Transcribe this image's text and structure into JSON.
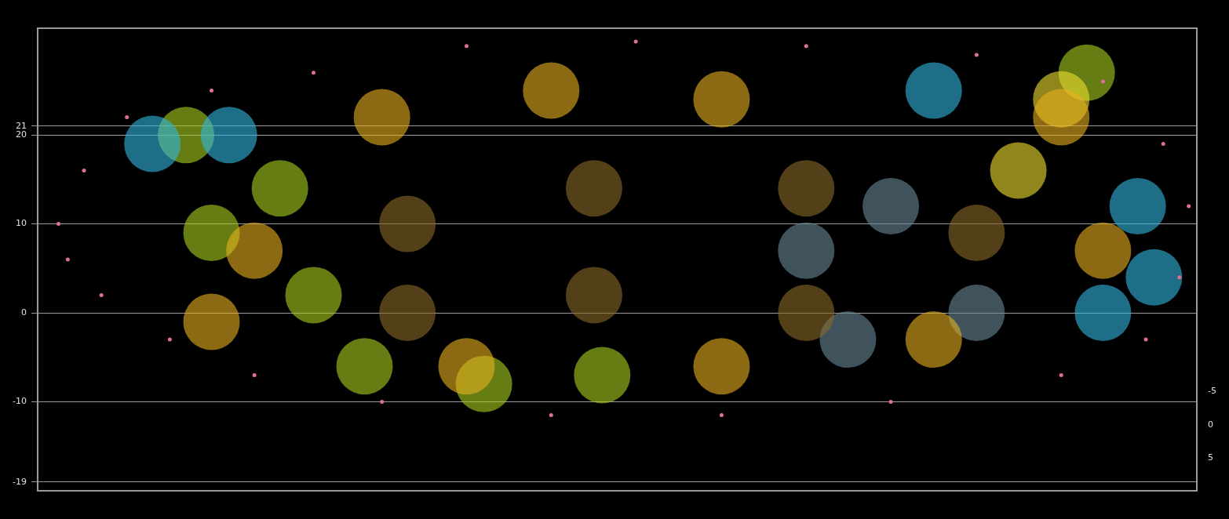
{
  "chart_data": {
    "type": "scatter",
    "xlim": [
      0,
      100
    ],
    "ylim": [
      -20,
      32
    ],
    "yticks": [
      -19,
      -10,
      0,
      10,
      20,
      21
    ],
    "y2lim": [
      -60,
      10
    ],
    "y2ticks": [
      -5,
      0,
      5
    ],
    "grid": true,
    "series": [
      {
        "color": "#e07090",
        "marker": "dot",
        "x": [
          1.8,
          4.0,
          7.7,
          15.0,
          23.8,
          37.0,
          51.6,
          66.3,
          81.0,
          91.9,
          97.1,
          99.3,
          98.5,
          95.6,
          88.3,
          73.6,
          59.0,
          44.3,
          29.7,
          18.7,
          11.4,
          5.5,
          2.6
        ],
        "values": [
          10,
          16,
          22,
          25,
          27,
          30,
          30.5,
          30,
          29,
          26,
          19,
          12,
          4,
          -3,
          -7,
          -10,
          -11.5,
          -11.5,
          -10,
          -7,
          -3,
          2,
          6
        ]
      },
      {
        "color": "#e8b020",
        "marker": "circle",
        "x": [
          18.7,
          29.7,
          44.3,
          59.0,
          88.3,
          91.9,
          37.0,
          59.0,
          77.3,
          15.0
        ],
        "values": [
          7,
          22,
          25,
          24,
          22,
          7,
          -6,
          -6,
          -3,
          -1
        ]
      },
      {
        "color": "#8a6a2a",
        "marker": "circle",
        "x": [
          31.9,
          31.9,
          48.0,
          48.0,
          66.3,
          66.3,
          81.0
        ],
        "values": [
          10,
          0,
          14,
          2,
          14,
          0,
          9
        ]
      },
      {
        "color": "#6a8a9a",
        "marker": "circle",
        "x": [
          66.3,
          73.6,
          69.9,
          81.0
        ],
        "values": [
          7,
          12,
          -3,
          0
        ]
      },
      {
        "color": "#30b8e0",
        "marker": "circle",
        "x": [
          9.9,
          16.5,
          94.9,
          96.3,
          91.9,
          77.3
        ],
        "values": [
          19,
          20,
          12,
          4,
          0,
          25
        ]
      },
      {
        "color": "#f0e030",
        "marker": "circle",
        "x": [
          88.3,
          84.6
        ],
        "values": [
          24,
          16
        ]
      },
      {
        "color": "#a8d020",
        "marker": "circle",
        "x": [
          15.0,
          20.9,
          12.8,
          28.2,
          38.5,
          48.7,
          90.5,
          23.8
        ],
        "values": [
          9,
          14,
          20,
          -6,
          -8,
          -7,
          27,
          2
        ]
      }
    ]
  }
}
